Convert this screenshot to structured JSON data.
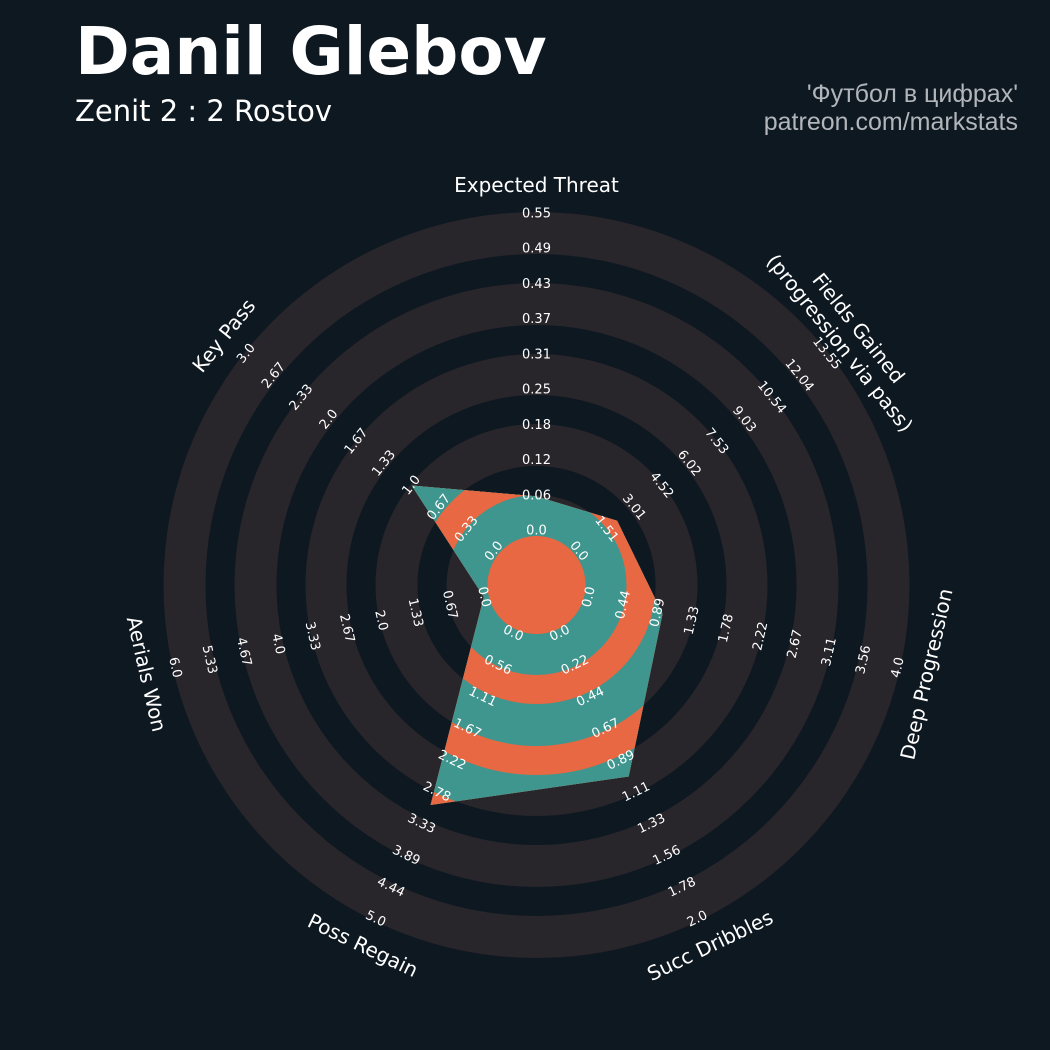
{
  "header": {
    "title": "Danil Glebov",
    "subtitle": "Zenit 2 : 2 Rostov",
    "credit_line1": "'Футбол в цифрах'",
    "credit_line2": "patreon.com/markstats"
  },
  "colors": {
    "background": "#0e1821",
    "ring_light": "#28252b",
    "ring_dark": "#0e1821",
    "player_primary": "#3e968e",
    "player_secondary": "#e76842",
    "text": "#ffffff",
    "credit": "#b2b6ba"
  },
  "chart_data": {
    "type": "radar",
    "params": [
      {
        "label": [
          "Expected Threat"
        ],
        "ticks": [
          "0.0",
          "0.06",
          "0.12",
          "0.18",
          "0.25",
          "0.31",
          "0.37",
          "0.43",
          "0.49",
          "0.55"
        ],
        "min": 0,
        "max": 0.55,
        "value": 0.06
      },
      {
        "label": [
          "Fields Gained",
          "(progression via pass)"
        ],
        "ticks": [
          "0.0",
          "1.51",
          "3.01",
          "4.52",
          "6.02",
          "7.53",
          "9.03",
          "10.54",
          "12.04",
          "13.55"
        ],
        "min": 0,
        "max": 13.55,
        "value": 2.1
      },
      {
        "label": [
          "Deep Progression"
        ],
        "ticks": [
          "0.0",
          "0.44",
          "0.89",
          "1.33",
          "1.78",
          "2.22",
          "2.67",
          "3.11",
          "3.56",
          "4.0"
        ],
        "min": 0,
        "max": 4.0,
        "value": 0.95
      },
      {
        "label": [
          "Succ Dribbles"
        ],
        "ticks": [
          "0.0",
          "0.22",
          "0.44",
          "0.67",
          "0.89",
          "1.11",
          "1.33",
          "1.56",
          "1.78",
          "2.0"
        ],
        "min": 0,
        "max": 2.0,
        "value": 1.0
      },
      {
        "label": [
          "Poss Regain"
        ],
        "ticks": [
          "0.0",
          "0.56",
          "1.11",
          "1.67",
          "2.22",
          "2.78",
          "3.33",
          "3.89",
          "4.44",
          "5.0"
        ],
        "min": 0,
        "max": 5.0,
        "value": 3.0
      },
      {
        "label": [
          "Aerials Won"
        ],
        "ticks": [
          "0.0",
          "0.67",
          "1.33",
          "2.0",
          "2.67",
          "3.33",
          "4.0",
          "4.67",
          "5.33",
          "6.0"
        ],
        "min": 0,
        "max": 6.0,
        "value": 0.0
      },
      {
        "label": [
          "Key Pass"
        ],
        "ticks": [
          "0.0",
          "0.33",
          "0.67",
          "1.0",
          "1.33",
          "1.67",
          "2.0",
          "2.33",
          "2.67",
          "3.0"
        ],
        "min": 0,
        "max": 3.0,
        "value": 1.0
      }
    ]
  }
}
